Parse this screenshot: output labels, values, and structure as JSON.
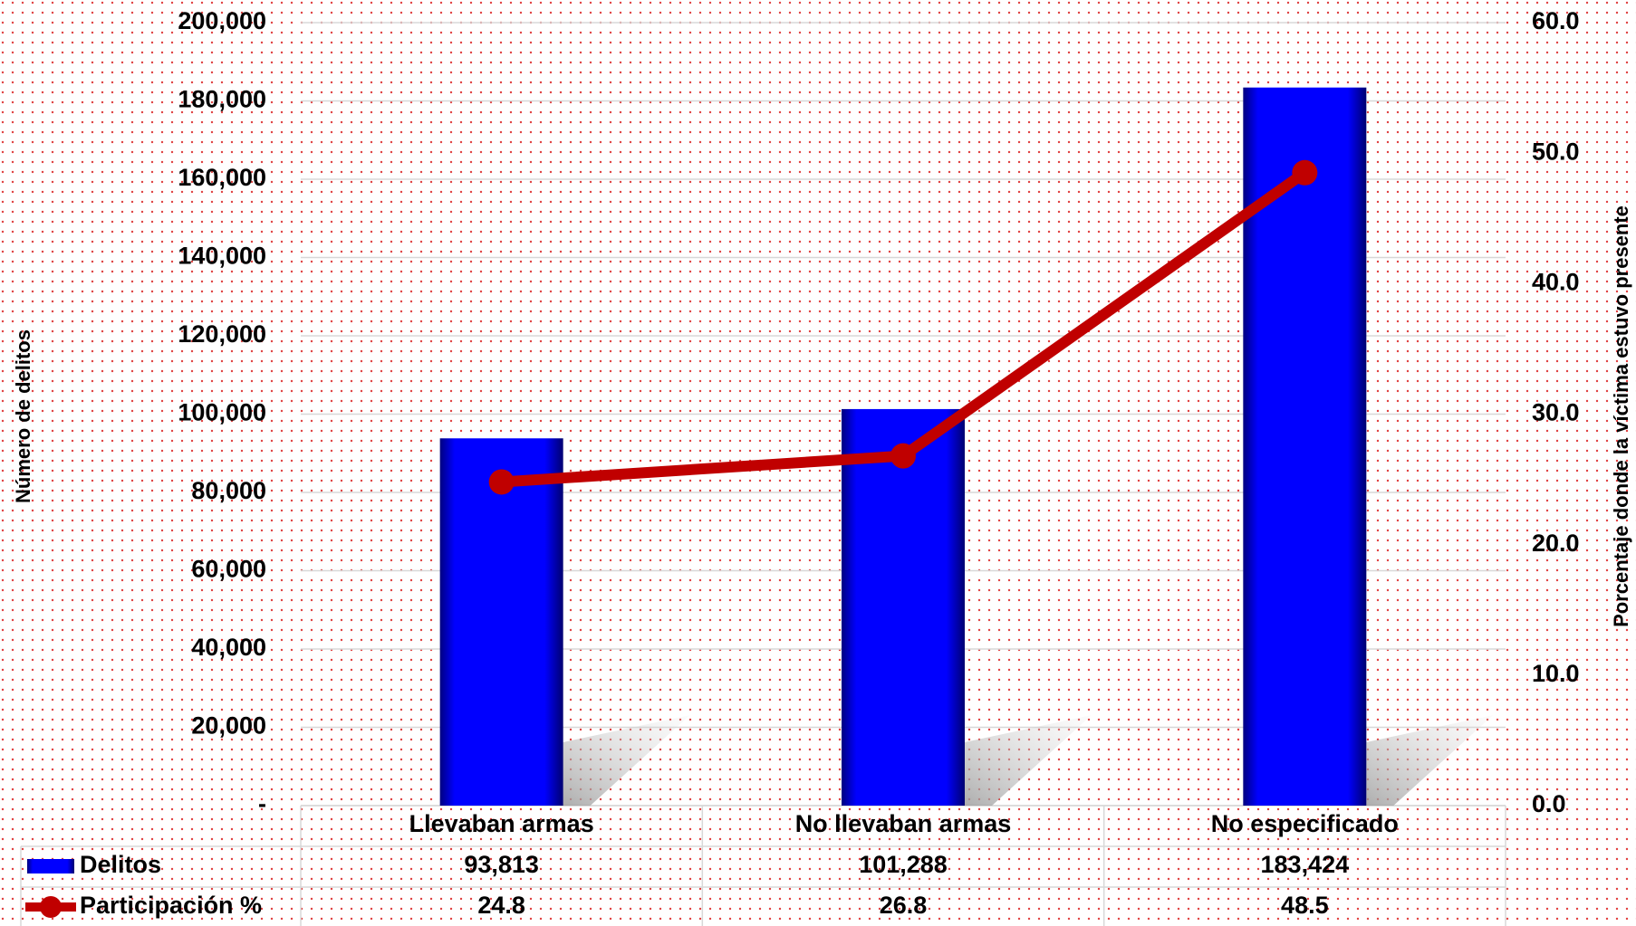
{
  "chart_data": {
    "type": "bar+line",
    "categories": [
      "Llevaban armas",
      "No llevaban armas",
      "No especificado"
    ],
    "series": [
      {
        "name": "Delitos",
        "type": "bar",
        "color": "#0000ff",
        "values": [
          93813,
          101288,
          183424
        ],
        "value_labels": [
          "93,813",
          "101,288",
          "183,424"
        ]
      },
      {
        "name": "Participación %",
        "type": "line",
        "axis": "y2",
        "color": "#c00000",
        "values": [
          24.8,
          26.8,
          48.5
        ]
      }
    ],
    "ylabel": "Número de delitos",
    "y2label": "Porcentaje donde la víctima estuvo presente",
    "ylim": [
      0,
      200000
    ],
    "yticks": [
      {
        "value": 0,
        "label": "-"
      },
      {
        "value": 20000,
        "label": "20,000"
      },
      {
        "value": 40000,
        "label": "40,000"
      },
      {
        "value": 60000,
        "label": "60,000"
      },
      {
        "value": 80000,
        "label": "80,000"
      },
      {
        "value": 100000,
        "label": "100,000"
      },
      {
        "value": 120000,
        "label": "120,000"
      },
      {
        "value": 140000,
        "label": "140,000"
      },
      {
        "value": 160000,
        "label": "160,000"
      },
      {
        "value": 180000,
        "label": "180,000"
      },
      {
        "value": 200000,
        "label": "200,000"
      }
    ],
    "y2lim": [
      0,
      60
    ],
    "y2ticks": [
      {
        "value": 0,
        "label": "0.0"
      },
      {
        "value": 10,
        "label": "10.0"
      },
      {
        "value": 20,
        "label": "20.0"
      },
      {
        "value": 30,
        "label": "30.0"
      },
      {
        "value": 40,
        "label": "40.0"
      },
      {
        "value": 50,
        "label": "50.0"
      },
      {
        "value": 60,
        "label": "60.0"
      }
    ],
    "grid": true,
    "legend": "data-table"
  }
}
